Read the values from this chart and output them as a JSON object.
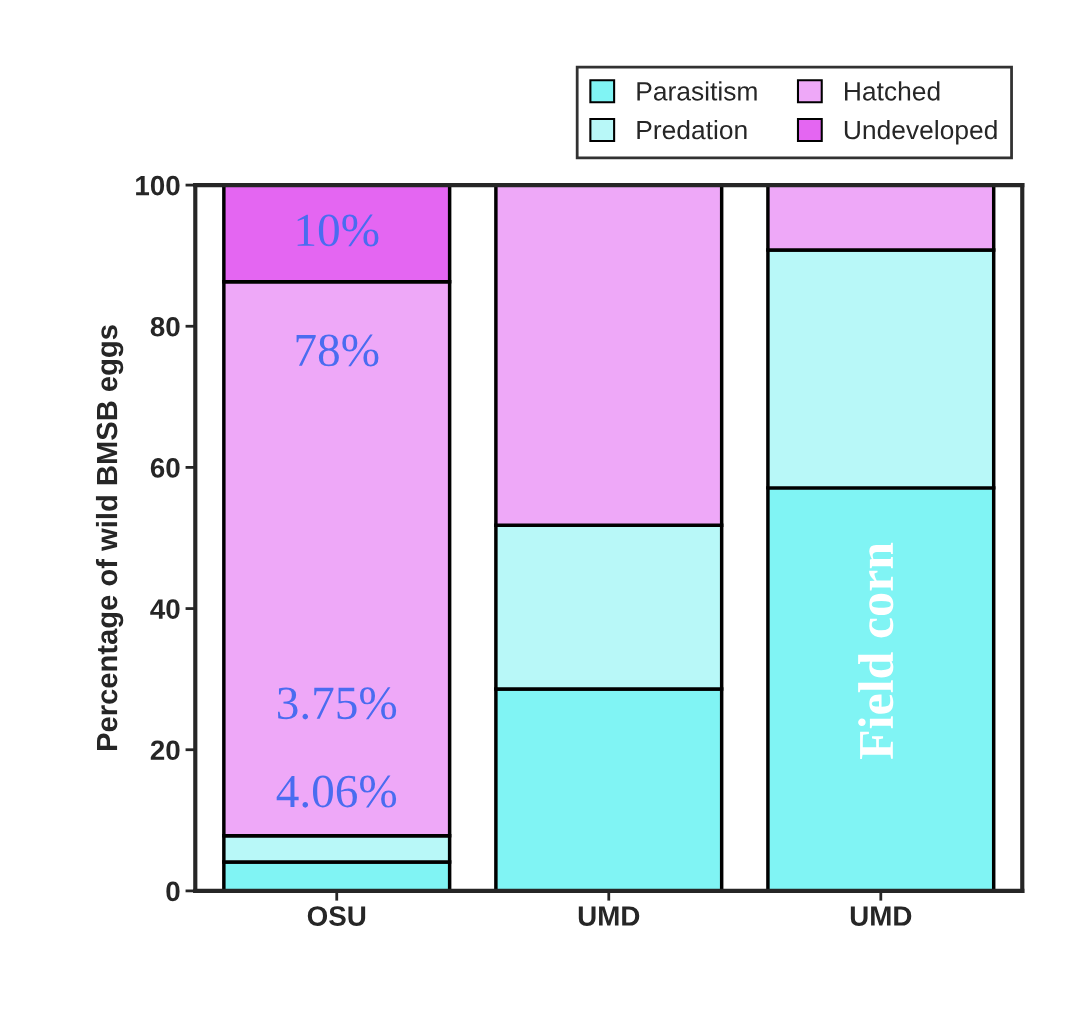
{
  "chart_data": {
    "type": "bar",
    "stacked": true,
    "ylabel": "Percentage of wild BMSB eggs",
    "categories": [
      "OSU",
      "UMD",
      "UMD"
    ],
    "series": [
      {
        "name": "Parasitism",
        "color": "#80f4f4",
        "values": [
          4.1,
          28.6,
          57.1
        ]
      },
      {
        "name": "Predation",
        "color": "#b8f8f8",
        "values": [
          3.7,
          23.2,
          33.7
        ]
      },
      {
        "name": "Hatched",
        "color": "#eea8f8",
        "values": [
          78.5,
          48.2,
          9.2
        ]
      },
      {
        "name": "Undeveloped",
        "color": "#e466f2",
        "values": [
          13.7,
          null,
          null
        ]
      }
    ],
    "ylim": [
      0,
      100
    ],
    "yticks": [
      0,
      20,
      40,
      60,
      80,
      100
    ],
    "grid": false,
    "legend": "top right",
    "annotations": [
      "10%",
      "78%",
      "3.75%",
      "4.06%",
      "Field corn"
    ]
  }
}
